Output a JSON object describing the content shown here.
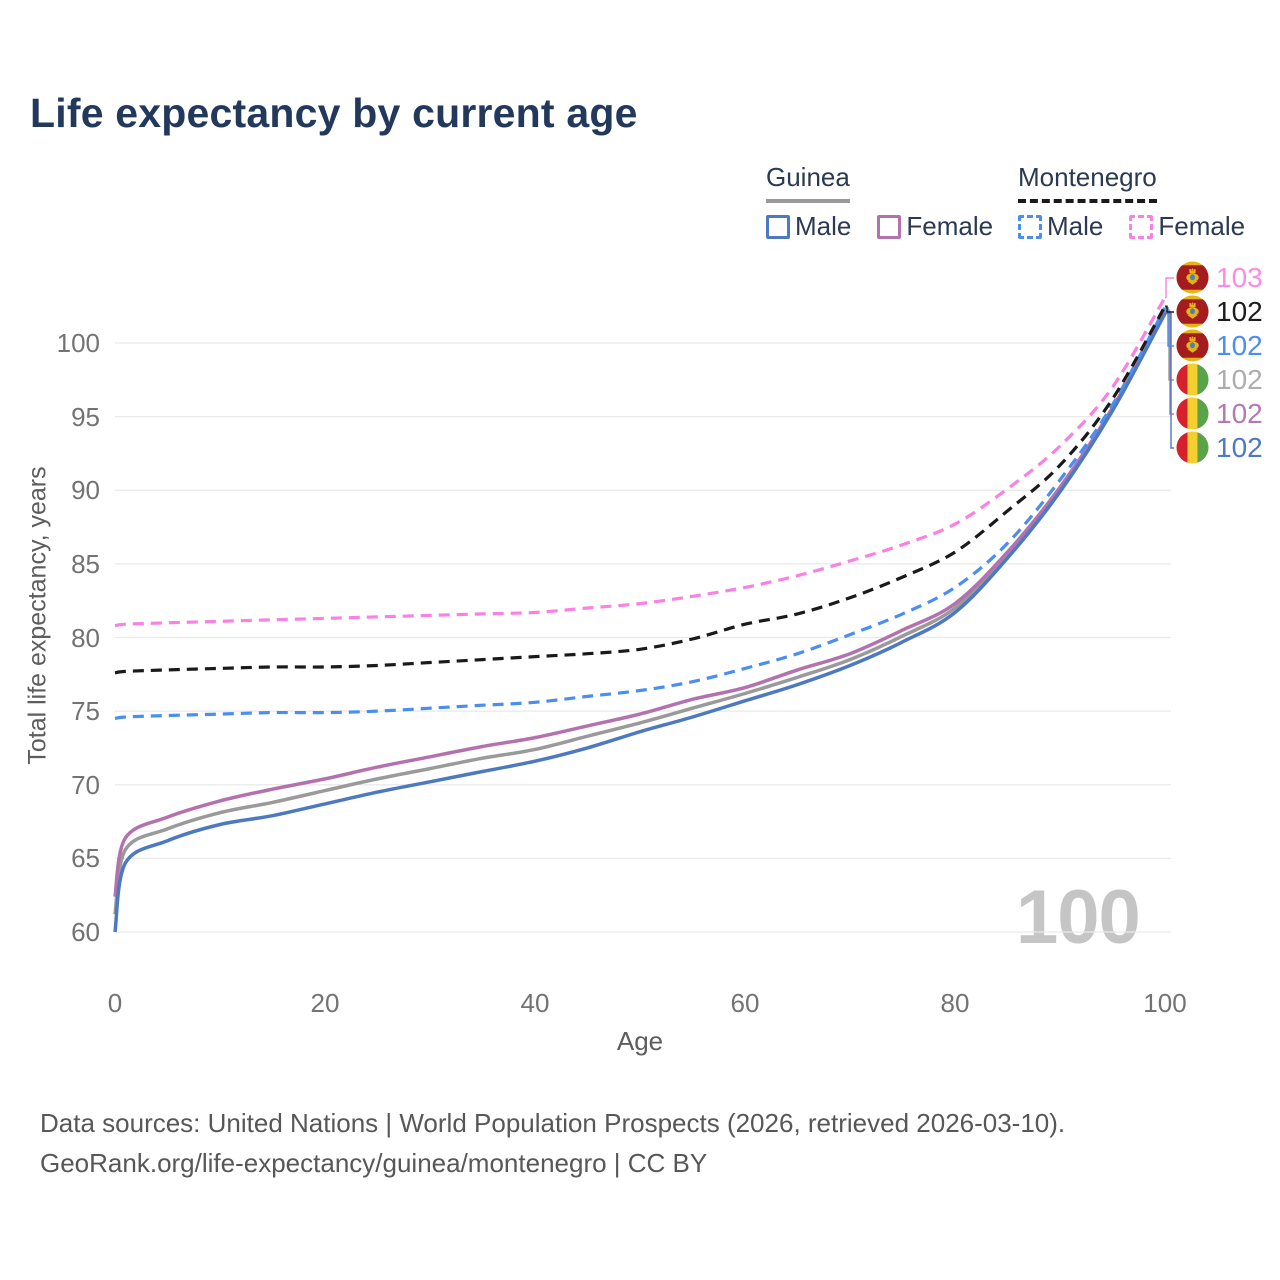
{
  "title": "Life expectancy by current age",
  "watermark": "100",
  "legend": {
    "groups": [
      {
        "title": "Guinea",
        "line_style": "solid",
        "items": [
          {
            "label": "Male",
            "color": "#4d79c0"
          },
          {
            "label": "Female",
            "color": "#b471af"
          }
        ]
      },
      {
        "title": "Montenegro",
        "line_style": "dashed",
        "items": [
          {
            "label": "Male",
            "color": "#4a8ef2"
          },
          {
            "label": "Female",
            "color": "#fb80e3"
          }
        ]
      }
    ]
  },
  "footer": {
    "line1": "Data sources: United Nations | World Population Prospects (2026, retrieved 2026-03-10).",
    "line2": "GeoRank.org/life-expectancy/guinea/montenegro | CC BY"
  },
  "chart_data": {
    "type": "line",
    "title": "Life expectancy by current age",
    "xlabel": "Age",
    "ylabel": "Total life expectancy, years",
    "xlim": [
      0,
      100
    ],
    "ylim": [
      60,
      103.5
    ],
    "xticks": [
      0,
      20,
      40,
      60,
      80,
      100
    ],
    "yticks": [
      60,
      65,
      70,
      75,
      80,
      85,
      90,
      95,
      100
    ],
    "grid": "horizontal",
    "legend_position": "top-right",
    "ages": [
      0,
      1,
      5,
      10,
      15,
      20,
      25,
      30,
      35,
      40,
      45,
      50,
      55,
      60,
      65,
      70,
      75,
      80,
      85,
      90,
      95,
      100
    ],
    "series": [
      {
        "name": "Guinea Both sexes",
        "country": "Guinea",
        "sex": "Both",
        "color": "#9a9a9a",
        "dash": "solid",
        "flag": "guinea",
        "end_label": "102",
        "label_color": "#adadad",
        "callout_row": 3,
        "values": [
          61.2,
          65.6,
          67.0,
          68.1,
          68.8,
          69.6,
          70.4,
          71.1,
          71.8,
          72.4,
          73.3,
          74.2,
          75.2,
          76.2,
          77.3,
          78.5,
          80.1,
          82.0,
          85.6,
          90.05,
          95.5,
          102.25
        ]
      },
      {
        "name": "Guinea Female",
        "country": "Guinea",
        "sex": "Female",
        "color": "#b471af",
        "dash": "solid",
        "flag": "guinea",
        "end_label": "102",
        "label_color": "#b578b1",
        "callout_row": 4,
        "values": [
          62.4,
          66.4,
          67.8,
          68.9,
          69.7,
          70.4,
          71.2,
          71.9,
          72.6,
          73.2,
          74.0,
          74.8,
          75.8,
          76.6,
          77.8,
          78.9,
          80.5,
          82.3,
          85.8,
          90.2,
          95.6,
          102.15
        ]
      },
      {
        "name": "Guinea Male",
        "country": "Guinea",
        "sex": "Male",
        "color": "#4d79c0",
        "dash": "solid",
        "flag": "guinea",
        "end_label": "102",
        "label_color": "#4d79c0",
        "callout_row": 5,
        "values": [
          60.0,
          64.7,
          66.2,
          67.3,
          67.9,
          68.7,
          69.5,
          70.2,
          70.9,
          71.6,
          72.5,
          73.6,
          74.6,
          75.7,
          76.8,
          78.1,
          79.7,
          81.7,
          85.4,
          89.9,
          95.4,
          102.0
        ]
      },
      {
        "name": "Montenegro Female",
        "country": "Montenegro",
        "sex": "Female",
        "color": "#fb80e3",
        "dash": "dashed",
        "flag": "montenegro",
        "end_label": "103",
        "label_color": "#ff8ae4",
        "callout_row": 0,
        "values": [
          80.8,
          80.9,
          81.0,
          81.1,
          81.2,
          81.3,
          81.4,
          81.5,
          81.6,
          81.7,
          82.0,
          82.3,
          82.8,
          83.4,
          84.2,
          85.2,
          86.3,
          87.7,
          90.1,
          93.0,
          97.0,
          103.1
        ]
      },
      {
        "name": "Montenegro Male",
        "country": "Montenegro",
        "sex": "Male",
        "color": "#4a8ef2",
        "dash": "dashed",
        "flag": "montenegro",
        "end_label": "102",
        "label_color": "#4a8ef2",
        "callout_row": 2,
        "values": [
          74.5,
          74.6,
          74.7,
          74.8,
          74.9,
          74.9,
          75.0,
          75.2,
          75.4,
          75.6,
          76.0,
          76.4,
          77.0,
          77.9,
          78.9,
          80.2,
          81.6,
          83.4,
          86.4,
          90.7,
          95.8,
          102.4
        ]
      },
      {
        "name": "Montenegro Both sexes",
        "country": "Montenegro",
        "sex": "Both",
        "color": "#1a1a1a",
        "dash": "dashed",
        "flag": "montenegro",
        "end_label": "102",
        "label_color": "#1c1c1c",
        "callout_row": 1,
        "values": [
          77.6,
          77.7,
          77.8,
          77.9,
          78.0,
          78.0,
          78.1,
          78.3,
          78.5,
          78.7,
          78.9,
          79.2,
          79.9,
          80.9,
          81.6,
          82.7,
          84.1,
          85.8,
          88.6,
          91.7,
          96.2,
          102.5
        ]
      }
    ]
  }
}
